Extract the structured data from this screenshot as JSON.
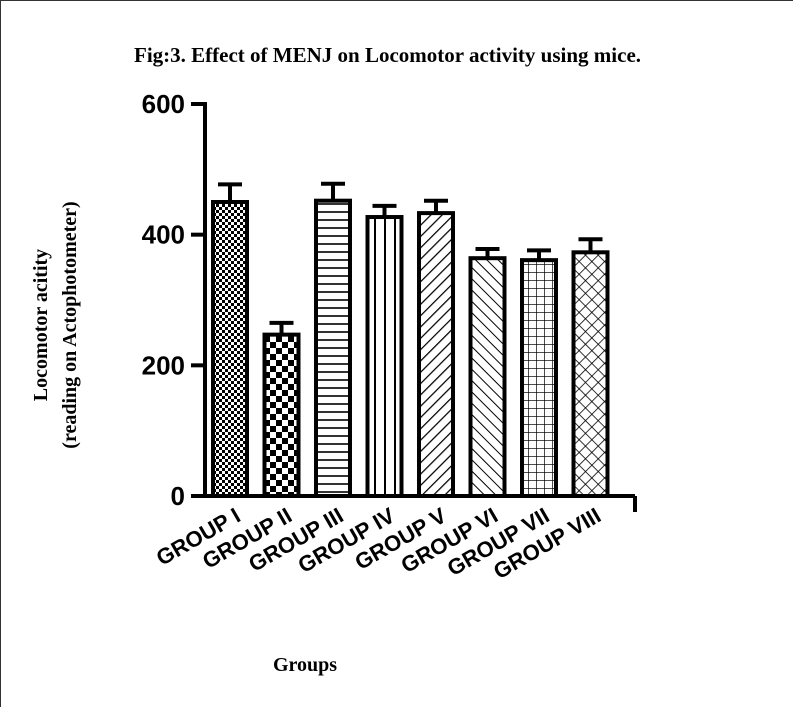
{
  "chart_data": {
    "type": "bar",
    "title": "Fig:3. Effect of MENJ on Locomotor activity using mice.",
    "xlabel": "Groups",
    "ylabel_lines": [
      "Locomotor acitity",
      "(reading on Actophotometer)"
    ],
    "categories": [
      "GROUP I",
      "GROUP II",
      "GROUP III",
      "GROUP IV",
      "GROUP V",
      "GROUP VI",
      "GROUP VII",
      "GROUP VIII"
    ],
    "values": [
      450,
      247,
      452,
      427,
      433,
      364,
      361,
      373
    ],
    "errors": [
      27,
      18,
      26,
      17,
      19,
      14,
      15,
      20
    ],
    "patterns": [
      "checker-fine",
      "checker-coarse",
      "horizontal-lines",
      "vertical-lines",
      "diagonal-lines",
      "diagonal-lines-reverse",
      "grid",
      "crosshatch"
    ],
    "yticks": [
      0,
      200,
      400,
      600
    ],
    "ylim": [
      0,
      600
    ],
    "grid": false,
    "legend": "none",
    "colors": {
      "bar_outline": "#000000",
      "pattern": "#000000",
      "background": "#ffffff"
    }
  }
}
